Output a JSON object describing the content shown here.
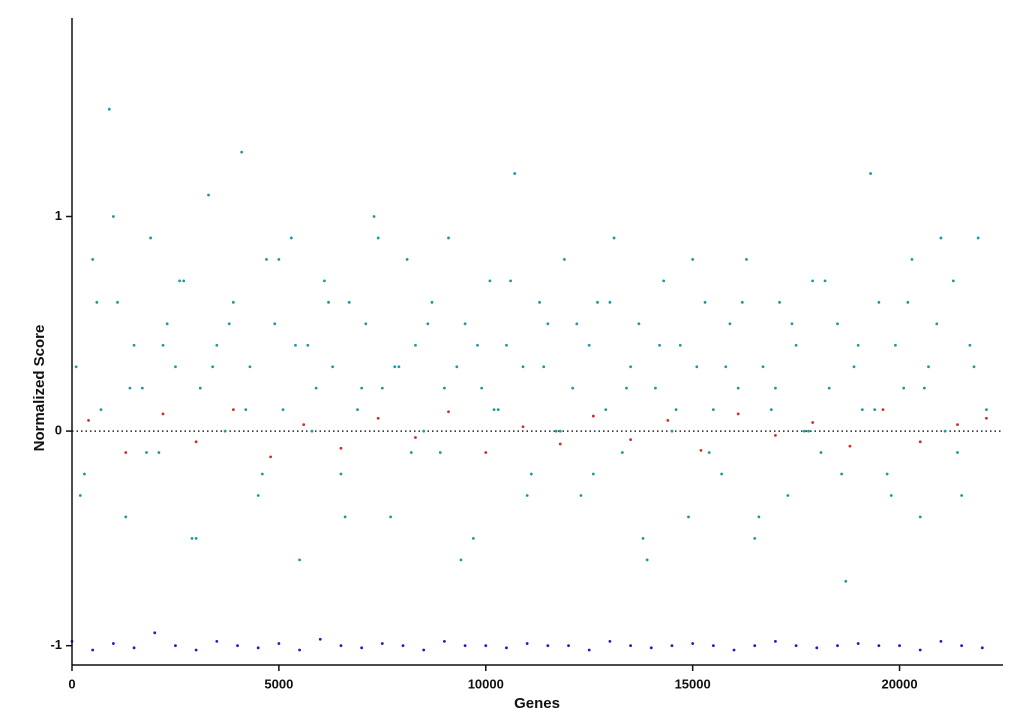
{
  "chart_data": {
    "type": "scatter",
    "x_label": "Genes",
    "y_label": "Normalized Score",
    "xlim": [
      0,
      22500
    ],
    "xticks": [
      0,
      5000,
      10000,
      15000,
      20000
    ],
    "ylim": [
      -1.09,
      1.925
    ],
    "yticks": [
      -1,
      0,
      1
    ],
    "zero_line": true,
    "series": [
      {
        "color": "#1b9aa0",
        "x": [
          100,
          300,
          500,
          700,
          900,
          1100,
          1300,
          1500,
          1700,
          1900,
          2100,
          2300,
          2500,
          2700,
          2900,
          3100,
          3300,
          3500,
          3700,
          3900,
          4100,
          4300,
          4500,
          4700,
          4900,
          5100,
          5300,
          5500,
          5700,
          5900,
          6100,
          6300,
          6500,
          6700,
          6900,
          7100,
          7300,
          7500,
          7700,
          7900,
          8100,
          8300,
          8500,
          8700,
          8900,
          9100,
          9300,
          9500,
          9700,
          9900,
          10100,
          10300,
          10500,
          10700,
          10900,
          11100,
          11300,
          11500,
          11700,
          11900,
          12100,
          12300,
          12500,
          12700,
          12900,
          13100,
          13300,
          13500,
          13700,
          13900,
          14100,
          14300,
          14500,
          14700,
          14900,
          15100,
          15300,
          15500,
          15700,
          15900,
          16100,
          16300,
          16500,
          16700,
          16900,
          17100,
          17300,
          17500,
          17700,
          17900,
          18100,
          18300,
          18500,
          18700,
          18900,
          19100,
          19300,
          19500,
          19700,
          19900,
          20100,
          20300,
          20500,
          20700,
          20900,
          21100,
          21300,
          21500,
          21700,
          21900,
          22100,
          200,
          600,
          1000,
          1400,
          1800,
          2200,
          2600,
          3000,
          3400,
          3800,
          4200,
          4600,
          5000,
          5400,
          5800,
          6200,
          6600,
          7000,
          7400,
          7800,
          8200,
          8600,
          9000,
          9400,
          9800,
          10200,
          10600,
          11000,
          11400,
          11800,
          12200,
          12600,
          13000,
          13400,
          13800,
          14200,
          14600,
          15000,
          15400,
          15800,
          16200,
          16600,
          17000,
          17400,
          17800,
          18200,
          18600,
          19000,
          19400,
          19800,
          20200,
          20600,
          21000,
          21400,
          21800
        ],
        "values": [
          0.3,
          -0.2,
          0.8,
          0.1,
          1.5,
          0.6,
          -0.4,
          0.4,
          0.2,
          0.9,
          -0.1,
          0.5,
          0.3,
          0.7,
          -0.5,
          0.2,
          1.1,
          0.4,
          0.0,
          0.6,
          1.3,
          0.3,
          -0.3,
          0.8,
          0.5,
          0.1,
          0.9,
          -0.6,
          0.4,
          0.2,
          0.7,
          0.3,
          -0.2,
          0.6,
          0.1,
          0.5,
          1.0,
          0.2,
          -0.4,
          0.3,
          0.8,
          0.4,
          0.0,
          0.6,
          -0.1,
          0.9,
          0.3,
          0.5,
          -0.5,
          0.2,
          0.7,
          0.1,
          0.4,
          1.2,
          0.3,
          -0.2,
          0.6,
          0.5,
          0.0,
          0.8,
          0.2,
          -0.3,
          0.4,
          0.6,
          0.1,
          0.9,
          -0.1,
          0.3,
          0.5,
          -0.6,
          0.2,
          0.7,
          0.0,
          0.4,
          -0.4,
          0.3,
          0.6,
          0.1,
          -0.2,
          0.5,
          0.2,
          0.8,
          -0.5,
          0.3,
          0.1,
          0.6,
          -0.3,
          0.4,
          0.0,
          0.7,
          -0.1,
          0.2,
          0.5,
          -0.7,
          0.3,
          0.1,
          1.2,
          0.6,
          -0.2,
          0.4,
          0.2,
          0.8,
          -0.4,
          0.3,
          0.5,
          0.0,
          0.7,
          -0.3,
          0.4,
          0.9,
          0.1,
          -0.3,
          0.6,
          1.0,
          0.2,
          -0.1,
          0.4,
          0.7,
          -0.5,
          0.3,
          0.5,
          0.1,
          -0.2,
          0.8,
          0.4,
          0.0,
          0.6,
          -0.4,
          0.2,
          0.9,
          0.3,
          -0.1,
          0.5,
          0.2,
          -0.6,
          0.4,
          0.1,
          0.7,
          -0.3,
          0.3,
          0.0,
          0.5,
          -0.2,
          0.6,
          0.2,
          -0.5,
          0.4,
          0.1,
          0.8,
          -0.1,
          0.3,
          0.6,
          -0.4,
          0.2,
          0.5,
          0.0,
          0.7,
          -0.2,
          0.4,
          0.1,
          -0.3,
          0.6,
          0.2,
          0.9,
          -0.1,
          0.3
        ]
      },
      {
        "color": "#d42a2a",
        "x": [
          400,
          1300,
          2200,
          3000,
          3900,
          4800,
          5600,
          6500,
          7400,
          8300,
          9100,
          10000,
          10900,
          11800,
          12600,
          13500,
          14400,
          15200,
          16100,
          17000,
          17900,
          18800,
          19600,
          20500,
          21400,
          22100
        ],
        "values": [
          0.05,
          -0.1,
          0.08,
          -0.05,
          0.1,
          -0.12,
          0.03,
          -0.08,
          0.06,
          -0.03,
          0.09,
          -0.1,
          0.02,
          -0.06,
          0.07,
          -0.04,
          0.05,
          -0.09,
          0.08,
          -0.02,
          0.04,
          -0.07,
          0.1,
          -0.05,
          0.03,
          0.06
        ]
      },
      {
        "color": "#1a1acc",
        "x": [
          0,
          500,
          1000,
          1500,
          2000,
          2500,
          3000,
          3500,
          4000,
          4500,
          5000,
          5500,
          6000,
          6500,
          7000,
          7500,
          8000,
          8500,
          9000,
          9500,
          10000,
          10500,
          11000,
          11500,
          12000,
          12500,
          13000,
          13500,
          14000,
          14500,
          15000,
          15500,
          16000,
          16500,
          17000,
          17500,
          18000,
          18500,
          19000,
          19500,
          20000,
          20500,
          21000,
          21500,
          22000
        ],
        "values": [
          -0.98,
          -1.02,
          -0.99,
          -1.01,
          -0.94,
          -1,
          -1.02,
          -0.98,
          -1,
          -1.01,
          -0.99,
          -1.02,
          -0.97,
          -1,
          -1.01,
          -0.99,
          -1,
          -1.02,
          -0.98,
          -1,
          -1,
          -1.01,
          -0.99,
          -1,
          -1,
          -1.02,
          -0.98,
          -1,
          -1.01,
          -1,
          -0.99,
          -1,
          -1.02,
          -1,
          -0.98,
          -1,
          -1.01,
          -1,
          -0.99,
          -1,
          -1,
          -1.02,
          -0.98,
          -1,
          -1.01
        ]
      }
    ]
  }
}
